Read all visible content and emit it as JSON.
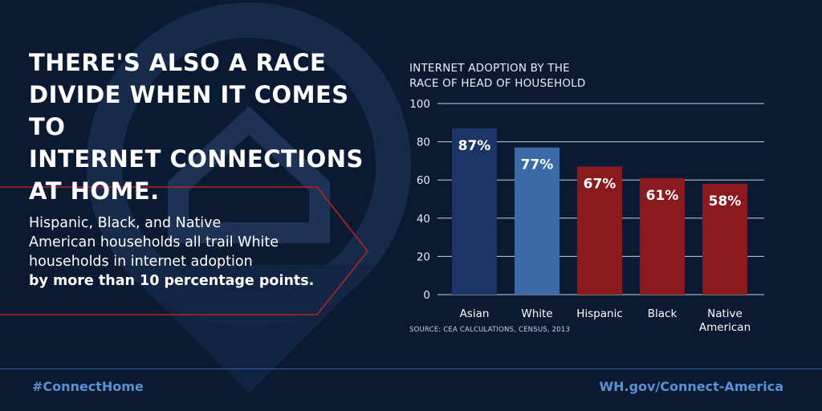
{
  "headline": [
    "THERE'S ALSO A RACE",
    "DIVIDE WHEN IT COMES TO",
    "INTERNET CONNECTIONS",
    "AT HOME."
  ],
  "body": {
    "lines": [
      "Hispanic, Black, and Native",
      "American households all trail White",
      "households in internet adoption"
    ],
    "emphasis": "by more than 10 percentage points."
  },
  "footer": {
    "hashtag": "#ConnectHome",
    "site": "WH.gov/Connect-America"
  },
  "colors": {
    "background": "#0b1a33",
    "asian_bar": "#1d3466",
    "white_bar": "#3a6aa8",
    "other_bar": "#8b1a1f",
    "accent_red": "#b3232b",
    "footer_text": "#5d8fd3"
  },
  "chart_data": {
    "type": "bar",
    "title": "INTERNET ADOPTION BY THE RACE OF HEAD OF HOUSEHOLD",
    "title_lines": [
      "INTERNET ADOPTION BY THE",
      "RACE OF HEAD OF HOUSEHOLD"
    ],
    "categories": [
      "Asian",
      "White",
      "Hispanic",
      "Black",
      "Native American"
    ],
    "values": [
      87,
      77,
      67,
      61,
      58
    ],
    "data_labels": [
      "87%",
      "77%",
      "67%",
      "61%",
      "58%"
    ],
    "bar_colors": [
      "#1d3466",
      "#3a6aa8",
      "#8b1a1f",
      "#8b1a1f",
      "#8b1a1f"
    ],
    "ylim": [
      0,
      100
    ],
    "yticks": [
      0,
      20,
      40,
      60,
      80,
      100
    ],
    "grid": true,
    "xlabel": "",
    "ylabel": "",
    "source": "SOURCE: CEA CALCULATIONS, CENSUS, 2013"
  }
}
